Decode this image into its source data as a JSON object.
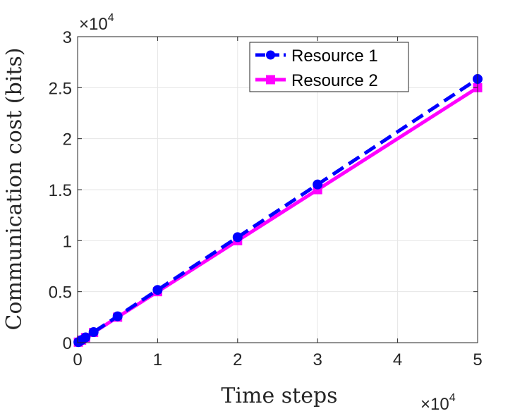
{
  "chart_data": {
    "type": "line",
    "title": "",
    "xlabel": "Time steps",
    "ylabel": "Communication cost (bits)",
    "xlim": [
      0,
      50000
    ],
    "ylim": [
      0,
      30000
    ],
    "x_ticks": [
      0,
      10000,
      20000,
      30000,
      40000,
      50000
    ],
    "y_ticks": [
      0,
      5000,
      10000,
      15000,
      20000,
      25000,
      30000
    ],
    "x_tick_labels": [
      "0",
      "1",
      "2",
      "3",
      "4",
      "5"
    ],
    "y_tick_labels": [
      "0",
      "0.5",
      "1",
      "1.5",
      "2",
      "2.5",
      "3"
    ],
    "x_exponent_label": "×10",
    "x_exponent_power": "4",
    "y_exponent_label": "×10",
    "y_exponent_power": "4",
    "grid": true,
    "legend_position": "top-right",
    "x": [
      100,
      500,
      1000,
      2000,
      5000,
      10000,
      20000,
      30000,
      50000
    ],
    "series": [
      {
        "name": "Resource 1",
        "color": "#0000ff",
        "line_style": "dashed",
        "marker": "circle",
        "values": [
          52,
          259,
          517,
          1034,
          2585,
          5170,
          10340,
          15510,
          25850
        ]
      },
      {
        "name": "Resource 2",
        "color": "#ff00ff",
        "line_style": "solid",
        "marker": "square",
        "values": [
          50,
          250,
          500,
          1000,
          2500,
          5000,
          10000,
          15000,
          25000
        ]
      }
    ]
  }
}
